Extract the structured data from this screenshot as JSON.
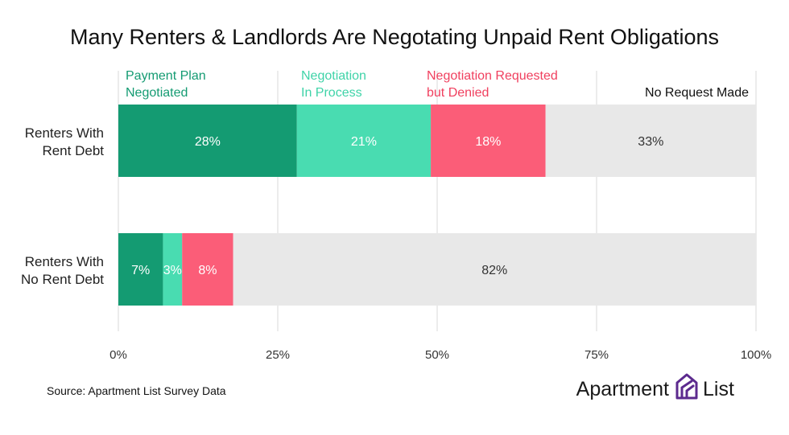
{
  "title": "Many Renters & Landlords Are Negotating Unpaid Rent Obligations",
  "source": "Source: Apartment List Survey Data",
  "logo": {
    "word1": "Apartment",
    "word2": "List",
    "mark": "apartment-list-logo"
  },
  "colors": {
    "payment_plan": "#149b72",
    "in_process": "#49dcb1",
    "denied": "#fb5d78",
    "no_request": "#e8e8e8",
    "legend_payment_plan": "#149b72",
    "legend_in_process": "#3fd3a8",
    "legend_denied": "#f0405f",
    "legend_no_request": "#111111",
    "logo_accent": "#5c2a8e"
  },
  "chart_data": {
    "type": "bar",
    "orientation": "horizontal",
    "stacked": true,
    "categories": [
      "Renters With Rent Debt",
      "Renters With No Rent Debt"
    ],
    "category_lines": [
      [
        "Renters With",
        "Rent Debt"
      ],
      [
        "Renters With",
        "No Rent Debt"
      ]
    ],
    "series": [
      {
        "name": "Payment Plan Negotiated",
        "name_lines": [
          "Payment Plan",
          "Negotiated"
        ],
        "key": "payment_plan",
        "values": [
          28,
          7
        ],
        "labels": [
          "28%",
          "7%"
        ]
      },
      {
        "name": "Negotiation In Process",
        "name_lines": [
          "Negotiation",
          "In Process"
        ],
        "key": "in_process",
        "values": [
          21,
          3
        ],
        "labels": [
          "21%",
          "3%"
        ]
      },
      {
        "name": "Negotiation Requested but Denied",
        "name_lines": [
          "Negotiation Requested",
          "but Denied"
        ],
        "key": "denied",
        "values": [
          18,
          8
        ],
        "labels": [
          "18%",
          "8%"
        ]
      },
      {
        "name": "No Request Made",
        "name_lines": [
          "No Request Made"
        ],
        "key": "no_request",
        "values": [
          33,
          82
        ],
        "labels": [
          "33%",
          "82%"
        ]
      }
    ],
    "xlim": [
      0,
      100
    ],
    "xticks": [
      0,
      25,
      50,
      75,
      100
    ],
    "xtick_labels": [
      "0%",
      "25%",
      "50%",
      "75%",
      "100%"
    ],
    "grid": true,
    "legend": "top, inline above bars"
  }
}
